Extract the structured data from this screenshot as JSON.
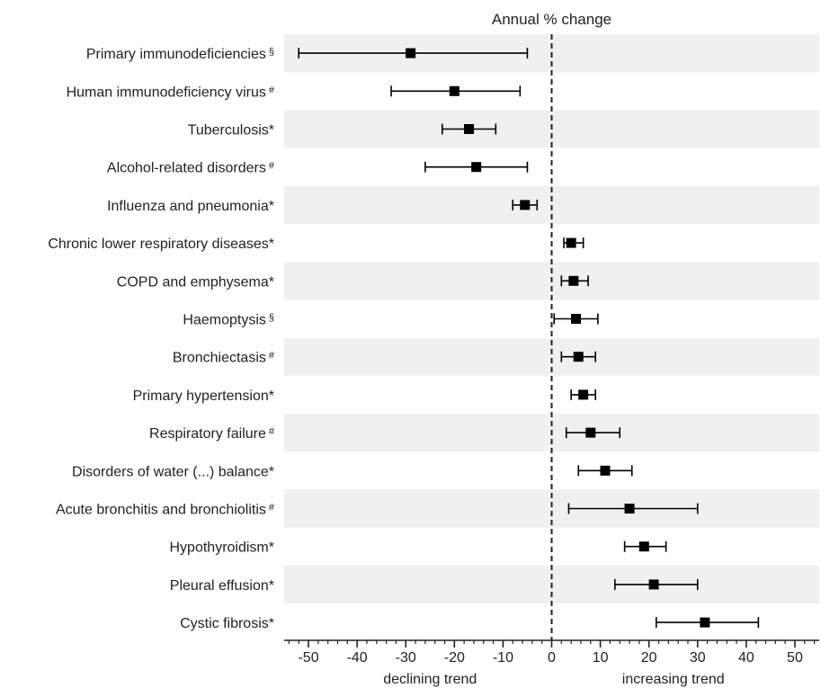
{
  "chart_data": {
    "type": "forest",
    "title": "Annual % change",
    "x_axis": {
      "range": [
        -55,
        55
      ],
      "major_ticks": [
        -50,
        -40,
        -30,
        -20,
        -10,
        0,
        10,
        20,
        30,
        40,
        50
      ],
      "minor_step": 2,
      "left_label": "declining trend",
      "right_label": "increasing trend",
      "reference_line": 0
    },
    "row_banding": true,
    "categories": [
      {
        "label": "Primary immunodeficiencies",
        "marker": "§",
        "estimate": -29,
        "low": -52,
        "high": -5
      },
      {
        "label": "Human immunodeficiency virus",
        "marker": "#",
        "estimate": -20,
        "low": -33,
        "high": -6.5
      },
      {
        "label": "Tuberculosis",
        "marker": "*",
        "estimate": -17,
        "low": -22.5,
        "high": -11.5
      },
      {
        "label": "Alcohol-related disorders",
        "marker": "#",
        "estimate": -15.5,
        "low": -26,
        "high": -5
      },
      {
        "label": "Influenza and pneumonia",
        "marker": "*",
        "estimate": -5.5,
        "low": -8,
        "high": -3
      },
      {
        "label": "Chronic lower respiratory diseases",
        "marker": "*",
        "estimate": 4,
        "low": 2.5,
        "high": 6.5
      },
      {
        "label": "COPD and emphysema",
        "marker": "*",
        "estimate": 4.5,
        "low": 2,
        "high": 7.5
      },
      {
        "label": "Haemoptysis",
        "marker": "§",
        "estimate": 5,
        "low": 0.5,
        "high": 9.5
      },
      {
        "label": "Bronchiectasis",
        "marker": "#",
        "estimate": 5.5,
        "low": 2,
        "high": 9
      },
      {
        "label": "Primary hypertension",
        "marker": "*",
        "estimate": 6.5,
        "low": 4,
        "high": 9
      },
      {
        "label": "Respiratory failure",
        "marker": "#",
        "estimate": 8,
        "low": 3,
        "high": 14
      },
      {
        "label": "Disorders of water (...) balance",
        "marker": "*",
        "estimate": 11,
        "low": 5.5,
        "high": 16.5
      },
      {
        "label": "Acute bronchitis and bronchiolitis",
        "marker": "#",
        "estimate": 16,
        "low": 3.5,
        "high": 30
      },
      {
        "label": "Hypothyroidism",
        "marker": "*",
        "estimate": 19,
        "low": 15,
        "high": 23.5
      },
      {
        "label": "Pleural effusion",
        "marker": "*",
        "estimate": 21,
        "low": 13,
        "high": 30
      },
      {
        "label": "Cystic fibrosis",
        "marker": "*",
        "estimate": 31.5,
        "low": 21.5,
        "high": 42.5
      }
    ],
    "colors": {
      "band": "#f0f0f0",
      "marker": "#000000",
      "axis": "#222222",
      "text": "#222222"
    }
  }
}
